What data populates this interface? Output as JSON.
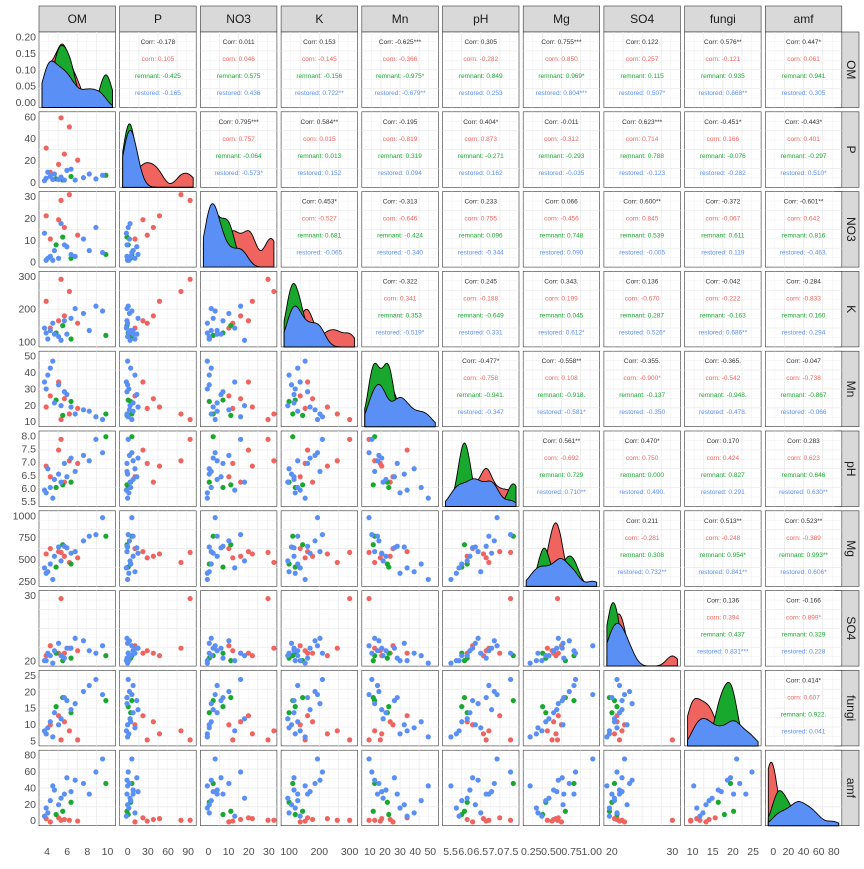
{
  "chart_data": {
    "type": "scatter-matrix",
    "variables": [
      "OM",
      "P",
      "NO3",
      "K",
      "Mn",
      "pH",
      "Mg",
      "SO4",
      "fungi",
      "amf"
    ],
    "groups": [
      {
        "name": "corn",
        "color": "#F0645F"
      },
      {
        "name": "remnant",
        "color": "#18A82E"
      },
      {
        "name": "restored",
        "color": "#5A8FF5"
      }
    ],
    "corr_label": "Corr:",
    "ticks": {
      "OM": [
        "4",
        "6",
        "8",
        "10"
      ],
      "P": [
        "0",
        "30",
        "60",
        "90"
      ],
      "NO3": [
        "0",
        "10",
        "20",
        "30"
      ],
      "K": [
        "100",
        "200",
        "300"
      ],
      "Mn": [
        "10",
        "20",
        "30",
        "40",
        "50"
      ],
      "pH": [
        "5.5",
        "6.0",
        "6.5",
        "7.0",
        "7.5"
      ],
      "Mg": [
        "0.25",
        "0.50",
        "0.75",
        "1.00"
      ],
      "SO4": [
        "20",
        "30"
      ],
      "fungi": [
        "10",
        "15",
        "20",
        "25"
      ],
      "amf": [
        "0",
        "20",
        "40",
        "60",
        "80"
      ]
    },
    "y_ticks": {
      "OM": [
        "0.00",
        "0.05",
        "0.10",
        "0.15",
        "0.20"
      ],
      "P": [
        "0",
        "20",
        "40",
        "60"
      ],
      "NO3": [
        "0",
        "10",
        "20",
        "30"
      ],
      "K": [
        "100",
        "200",
        "300"
      ],
      "Mn": [
        "10",
        "20",
        "30",
        "40",
        "50"
      ],
      "pH": [
        "5.5",
        "6.0",
        "6.5",
        "7.0",
        "7.5",
        "8.0"
      ],
      "Mg": [
        "250",
        "500",
        "750",
        "1000"
      ],
      "SO4": [
        "20",
        "30"
      ],
      "fungi": [
        "5",
        "10",
        "15",
        "20",
        "25"
      ],
      "amf": [
        "0",
        "20",
        "40",
        "60",
        "80"
      ]
    },
    "correlations": [
      [
        "OM",
        "P",
        "-0.178",
        "0.105",
        "-0.425",
        "-0.165"
      ],
      [
        "OM",
        "NO3",
        "0.011",
        "0.046",
        "0.575",
        "0.436"
      ],
      [
        "OM",
        "K",
        "0.153",
        "-0.145",
        "-0.156",
        "0.722**"
      ],
      [
        "OM",
        "Mn",
        "-0.625***",
        "-0.366",
        "-0.975*",
        "-0.679**"
      ],
      [
        "OM",
        "pH",
        "0.305",
        "-0.282",
        "0.849",
        "0.253"
      ],
      [
        "OM",
        "Mg",
        "0.755***",
        "0.850",
        "0.969*",
        "0.804***"
      ],
      [
        "OM",
        "SO4",
        "0.122",
        "0.257",
        "0.115",
        "0.507*"
      ],
      [
        "OM",
        "fungi",
        "0.576**",
        "-0.121",
        "0.935",
        "0.668**"
      ],
      [
        "OM",
        "amf",
        "0.447*",
        "0.061",
        "0.941",
        "0.305"
      ],
      [
        "P",
        "NO3",
        "0.795***",
        "0.757",
        "-0.064",
        "-0.573*"
      ],
      [
        "P",
        "K",
        "0.584**",
        "0.015",
        "0.013",
        "0.152"
      ],
      [
        "P",
        "Mn",
        "-0.195",
        "-0.819",
        "0.319",
        "0.094"
      ],
      [
        "P",
        "pH",
        "0.404*",
        "0.873",
        "-0.271",
        "0.162"
      ],
      [
        "P",
        "Mg",
        "-0.011",
        "-0.312",
        "-0.293",
        "-0.035"
      ],
      [
        "P",
        "SO4",
        "0.623***",
        "0.714",
        "0.788",
        "-0.123"
      ],
      [
        "P",
        "fungi",
        "-0.451*",
        "0.166",
        "-0.076",
        "-0.282"
      ],
      [
        "P",
        "amf",
        "-0.443*",
        "0.401",
        "-0.297",
        "0.510*"
      ],
      [
        "NO3",
        "K",
        "0.453*",
        "-0.527",
        "0.681",
        "-0.065"
      ],
      [
        "NO3",
        "Mn",
        "-0.313",
        "-0.646",
        "-0.424",
        "-0.340"
      ],
      [
        "NO3",
        "pH",
        "0.233",
        "0.755",
        "0.096",
        "-0.344"
      ],
      [
        "NO3",
        "Mg",
        "0.066",
        "-0.456",
        "0.748",
        "0.090"
      ],
      [
        "NO3",
        "SO4",
        "0.600**",
        "0.845",
        "0.539",
        "-0.005"
      ],
      [
        "NO3",
        "fungi",
        "-0.372",
        "-0.067",
        "0.611",
        "0.119"
      ],
      [
        "NO3",
        "amf",
        "-0.601**",
        "0.642",
        "0.816",
        "-0.463."
      ],
      [
        "K",
        "Mn",
        "-0.322",
        "0.341",
        "0.353",
        "-0.519*"
      ],
      [
        "K",
        "pH",
        "0.245",
        "-0.188",
        "-0.649",
        "0.331"
      ],
      [
        "K",
        "Mg",
        "0.343.",
        "0.199",
        "0.045",
        "0.612*"
      ],
      [
        "K",
        "SO4",
        "0.136",
        "-0.670",
        "0.287",
        "0.526*"
      ],
      [
        "K",
        "fungi",
        "-0.042",
        "-0.222",
        "-0.163",
        "0.686**"
      ],
      [
        "K",
        "amf",
        "-0.284",
        "-0.833",
        "0.160",
        "0.294"
      ],
      [
        "Mn",
        "pH",
        "-0.477*",
        "-0.758",
        "-0.941.",
        "-0.347"
      ],
      [
        "Mn",
        "Mg",
        "-0.558**",
        "0.108",
        "-0.918.",
        "-0.581*"
      ],
      [
        "Mn",
        "SO4",
        "-0.355.",
        "-0.900*",
        "-0.137",
        "-0.350"
      ],
      [
        "Mn",
        "fungi",
        "-0.365.",
        "-0.542",
        "-0.948.",
        "-0.478."
      ],
      [
        "Mn",
        "amf",
        "-0.047",
        "-0.738",
        "-0.867",
        "-0.066"
      ],
      [
        "pH",
        "Mg",
        "0.561**",
        "-0.692",
        "0.729",
        "0.710**"
      ],
      [
        "pH",
        "SO4",
        "0.470*",
        "0.750",
        "0.000",
        "0.490."
      ],
      [
        "pH",
        "fungi",
        "0.170",
        "0.424",
        "0.827",
        "0.291"
      ],
      [
        "pH",
        "amf",
        "0.283",
        "0.623",
        "0.646",
        "0.630**"
      ],
      [
        "Mg",
        "SO4",
        "0.211",
        "-0.281",
        "0.308",
        "0.732**"
      ],
      [
        "Mg",
        "fungi",
        "0.513**",
        "-0.248",
        "0.954*",
        "0.841**"
      ],
      [
        "Mg",
        "amf",
        "0.523**",
        "-0.389",
        "0.993**",
        "0.606*"
      ],
      [
        "SO4",
        "fungi",
        "0.136",
        "0.394",
        "0.437",
        "0.831***"
      ],
      [
        "SO4",
        "amf",
        "-0.166",
        "0.899*",
        "0.329",
        "0.228"
      ],
      [
        "fungi",
        "amf",
        "0.414*",
        "0.607",
        "0.922.",
        "0.041"
      ]
    ],
    "ranges": {
      "OM": [
        2.5,
        11
      ],
      "P": [
        -5,
        110
      ],
      "NO3": [
        -1,
        35
      ],
      "K": [
        55,
        340
      ],
      "Mn": [
        5,
        55
      ],
      "pH": [
        5.4,
        8.0
      ],
      "Mg": [
        150,
        1050
      ],
      "SO4": [
        12,
        40
      ],
      "fungi": [
        5,
        28
      ],
      "amf": [
        0,
        85
      ]
    },
    "samples": [
      {
        "g": 0,
        "OM": 4.8,
        "P": 105,
        "NO3": 32,
        "K": 320,
        "Mn": 8,
        "pH": 7.8,
        "Mg": 550,
        "SO4": 38,
        "fungi": 6,
        "amf": 3
      },
      {
        "g": 0,
        "OM": 3.0,
        "P": 55,
        "NO3": 24,
        "K": 230,
        "Mn": 17,
        "pH": 6.8,
        "Mg": 530,
        "SO4": 15,
        "fungi": 8,
        "amf": 5
      },
      {
        "g": 0,
        "OM": 5.2,
        "P": 45,
        "NO3": 18,
        "K": 170,
        "Mn": 23,
        "pH": 6.2,
        "Mg": 500,
        "SO4": 16,
        "fungi": 12,
        "amf": 4
      },
      {
        "g": 0,
        "OM": 6.8,
        "P": 35,
        "NO3": 14,
        "K": 140,
        "Mn": 16,
        "pH": 6.9,
        "Mg": 480,
        "SO4": 17,
        "fungi": 6,
        "amf": 2
      },
      {
        "g": 0,
        "OM": 4.5,
        "P": 28,
        "NO3": 22,
        "K": 150,
        "Mn": 35,
        "pH": 7.4,
        "Mg": 560,
        "SO4": 16,
        "fungi": 14,
        "amf": 6
      },
      {
        "g": 0,
        "OM": 3.5,
        "P": 15,
        "NO3": 12,
        "K": 120,
        "Mn": 25,
        "pH": 6.4,
        "Mg": 600,
        "SO4": 19,
        "fungi": 11,
        "amf": 1
      },
      {
        "g": 0,
        "OM": 5.8,
        "P": 90,
        "NO3": 35,
        "K": 270,
        "Mn": 12,
        "pH": 7.0,
        "Mg": 420,
        "SO4": 18,
        "fungi": 9,
        "amf": 3
      },
      {
        "g": 1,
        "OM": 10.2,
        "P": 10,
        "NO3": 4,
        "K": 90,
        "Mn": 12,
        "pH": 7.9,
        "Mg": 760,
        "SO4": 15,
        "fungi": 19,
        "amf": 48
      },
      {
        "g": 1,
        "OM": 6.0,
        "P": 8,
        "NO3": 2,
        "K": 75,
        "Mn": 21,
        "pH": 6.2,
        "Mg": 400,
        "SO4": 14,
        "fungi": 15,
        "amf": 25
      },
      {
        "g": 1,
        "OM": 4.2,
        "P": 4,
        "NO3": 9,
        "K": 100,
        "Mn": 22,
        "pH": 6.0,
        "Mg": 360,
        "SO4": 16,
        "fungi": 17,
        "amf": 10
      },
      {
        "g": 1,
        "OM": 5.0,
        "P": 2,
        "NO3": 13,
        "K": 130,
        "Mn": 11,
        "pH": 6.1,
        "Mg": 650,
        "SO4": 13,
        "fungi": 20,
        "amf": 14
      },
      {
        "g": 2,
        "OM": 3.0,
        "P": 5,
        "NO3": 1,
        "K": 100,
        "Mn": 30,
        "pH": 5.8,
        "Mg": 280,
        "SO4": 13,
        "fungi": 8,
        "amf": 18
      },
      {
        "g": 2,
        "OM": 3.5,
        "P": 8,
        "NO3": 3,
        "K": 110,
        "Mn": 45,
        "pH": 6.0,
        "Mg": 400,
        "SO4": 15,
        "fungi": 12,
        "amf": 27
      },
      {
        "g": 2,
        "OM": 4.0,
        "P": 12,
        "NO3": 6,
        "K": 95,
        "Mn": 20,
        "pH": 6.3,
        "Mg": 500,
        "SO4": 17,
        "fungi": 15,
        "amf": 40
      },
      {
        "g": 2,
        "OM": 4.5,
        "P": 3,
        "NO3": 2,
        "K": 85,
        "Mn": 33,
        "pH": 6.5,
        "Mg": 620,
        "SO4": 20,
        "fungi": 11,
        "amf": 22
      },
      {
        "g": 2,
        "OM": 5.2,
        "P": 2,
        "NO3": 9,
        "K": 150,
        "Mn": 28,
        "pH": 6.9,
        "Mg": 630,
        "SO4": 14,
        "fungi": 20,
        "amf": 35
      },
      {
        "g": 2,
        "OM": 6.0,
        "P": 20,
        "NO3": 4,
        "K": 160,
        "Mn": 17,
        "pH": 7.1,
        "Mg": 540,
        "SO4": 18,
        "fungi": 16,
        "amf": 38
      },
      {
        "g": 2,
        "OM": 7.5,
        "P": 6,
        "NO3": 12,
        "K": 180,
        "Mn": 15,
        "pH": 7.2,
        "Mg": 700,
        "SO4": 21,
        "fungi": 22,
        "amf": 48
      },
      {
        "g": 2,
        "OM": 9.0,
        "P": 4,
        "NO3": 18,
        "K": 210,
        "Mn": 10,
        "pH": 7.8,
        "Mg": 780,
        "SO4": 16,
        "fungi": 26,
        "amf": 62
      },
      {
        "g": 2,
        "OM": 9.8,
        "P": 10,
        "NO3": 5,
        "K": 190,
        "Mn": 8,
        "pH": 7.3,
        "Mg": 1000,
        "SO4": 19,
        "fungi": 21,
        "amf": 78
      },
      {
        "g": 2,
        "OM": 3.2,
        "P": 15,
        "NO3": 2,
        "K": 75,
        "Mn": 40,
        "pH": 6.7,
        "Mg": 300,
        "SO4": 16,
        "fungi": 10,
        "amf": 12
      },
      {
        "g": 2,
        "OM": 2.8,
        "P": 1,
        "NO3": 15,
        "K": 120,
        "Mn": 35,
        "pH": 5.9,
        "Mg": 350,
        "SO4": 13,
        "fungi": 9,
        "amf": 8
      },
      {
        "g": 2,
        "OM": 4.8,
        "P": 7,
        "NO3": 20,
        "K": 70,
        "Mn": 18,
        "pH": 6.2,
        "Mg": 440,
        "SO4": 15,
        "fungi": 13,
        "amf": 30
      },
      {
        "g": 2,
        "OM": 6.5,
        "P": 2,
        "NO3": 3,
        "K": 200,
        "Mn": 12,
        "pH": 6.6,
        "Mg": 560,
        "SO4": 22,
        "fungi": 18,
        "amf": 52
      },
      {
        "g": 2,
        "OM": 8.2,
        "P": 12,
        "NO3": 6,
        "K": 110,
        "Mn": 14,
        "pH": 7.0,
        "Mg": 760,
        "SO4": 17,
        "fungi": 24,
        "amf": 35
      },
      {
        "g": 2,
        "OM": 3.8,
        "P": 3,
        "NO3": 1,
        "K": 140,
        "Mn": 50,
        "pH": 5.6,
        "Mg": 200,
        "SO4": 12,
        "fungi": 7,
        "amf": 45
      },
      {
        "g": 2,
        "OM": 5.5,
        "P": 18,
        "NO3": 8,
        "K": 95,
        "Mn": 26,
        "pH": 6.4,
        "Mg": 610,
        "SO4": 18,
        "fungi": 19,
        "amf": 55
      }
    ]
  }
}
